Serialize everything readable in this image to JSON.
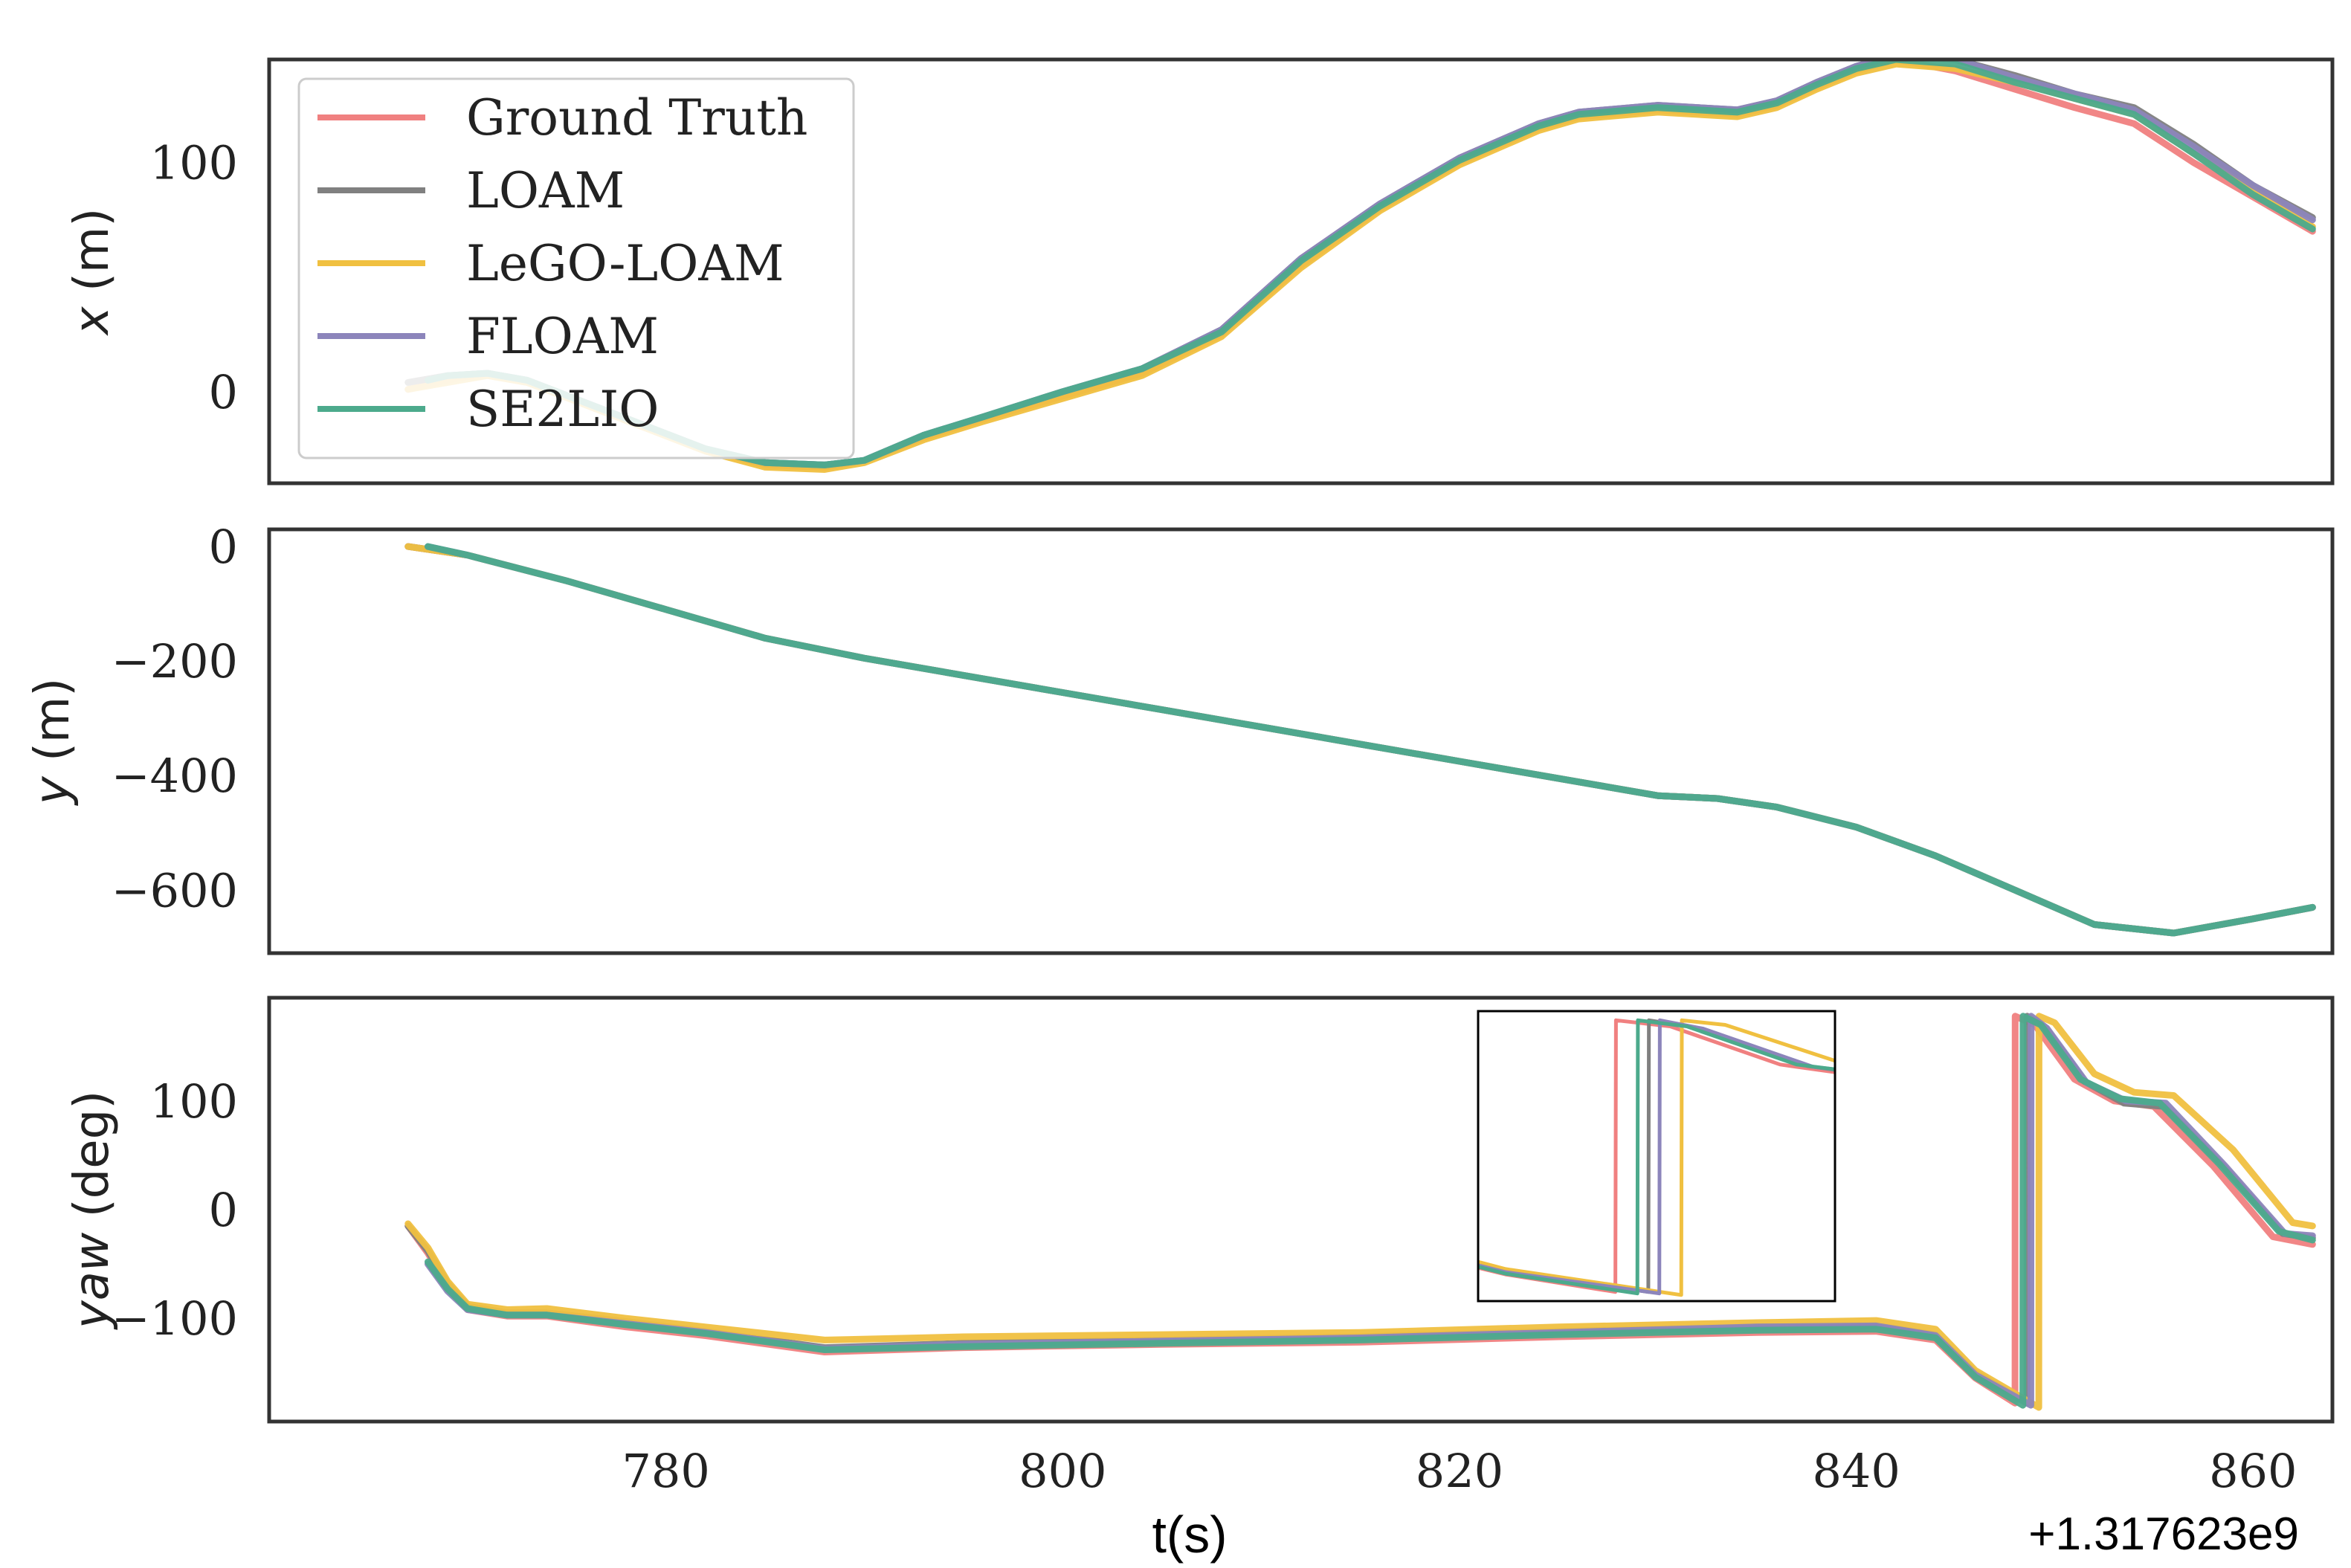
{
  "chart_data": [
    {
      "panel": "x",
      "type": "line",
      "ylabel_var": "x",
      "ylabel_unit": "(m)",
      "ylim": [
        -40,
        145
      ],
      "yticks": [
        0,
        100
      ],
      "xlim": [
        760,
        864
      ],
      "grid": false,
      "legend_placement": "top-left",
      "series": [
        {
          "name": "Ground Truth",
          "x": [
            767,
            769,
            771,
            773,
            776,
            779,
            782,
            785,
            788,
            790,
            793,
            796,
            800,
            804,
            808,
            812,
            816,
            820,
            824,
            826,
            830,
            834,
            836,
            838,
            840,
            842,
            845,
            848,
            851,
            854,
            857,
            860,
            863
          ],
          "y": [
            1,
            5,
            8,
            5,
            -5,
            -15,
            -25,
            -32,
            -33,
            -30,
            -20,
            -12,
            -2,
            8,
            25,
            55,
            80,
            100,
            115,
            120,
            123,
            121,
            125,
            133,
            140,
            145,
            140,
            132,
            124,
            117,
            100,
            85,
            70
          ]
        },
        {
          "name": "LOAM",
          "x": [
            767,
            769,
            771,
            773,
            776,
            779,
            782,
            785,
            788,
            790,
            793,
            796,
            800,
            804,
            808,
            812,
            816,
            820,
            824,
            826,
            830,
            834,
            836,
            838,
            840,
            842,
            845,
            848,
            851,
            854,
            857,
            860,
            863
          ],
          "y": [
            4,
            7,
            8,
            5,
            -5,
            -15,
            -25,
            -31,
            -32,
            -30,
            -19,
            -11,
            0,
            10,
            27,
            58,
            82,
            102,
            117,
            122,
            125,
            123,
            127,
            135,
            142,
            147,
            145,
            138,
            130,
            124,
            108,
            90,
            76
          ]
        },
        {
          "name": "LeGO-LOAM",
          "x": [
            767,
            769,
            771,
            773,
            776,
            779,
            782,
            785,
            788,
            790,
            793,
            796,
            800,
            804,
            808,
            812,
            816,
            820,
            824,
            826,
            830,
            834,
            836,
            838,
            840,
            842,
            845,
            848,
            851,
            854,
            857,
            860,
            863
          ],
          "y": [
            1,
            4,
            7,
            4,
            -6,
            -16,
            -26,
            -33,
            -34,
            -31,
            -21,
            -13,
            -3,
            7,
            24,
            54,
            79,
            99,
            114,
            119,
            122,
            120,
            124,
            132,
            139,
            143,
            141,
            135,
            128,
            121,
            104,
            88,
            72
          ]
        },
        {
          "name": "FLOAM",
          "x": [
            768,
            769,
            771,
            773,
            776,
            779,
            782,
            785,
            788,
            790,
            793,
            796,
            800,
            804,
            808,
            812,
            816,
            820,
            824,
            826,
            830,
            834,
            836,
            838,
            840,
            842,
            845,
            848,
            851,
            854,
            857,
            860,
            863
          ],
          "y": [
            5,
            7,
            8,
            5,
            -5,
            -15,
            -25,
            -31,
            -32,
            -30,
            -19,
            -11,
            0,
            10,
            27,
            58,
            82,
            102,
            117,
            122,
            125,
            123,
            127,
            135,
            142,
            147,
            145,
            137,
            130,
            123,
            107,
            90,
            75
          ]
        },
        {
          "name": "SE2LIO",
          "x": [
            768,
            769,
            771,
            773,
            776,
            779,
            782,
            785,
            788,
            790,
            793,
            796,
            800,
            804,
            808,
            812,
            816,
            820,
            824,
            826,
            830,
            834,
            836,
            838,
            840,
            842,
            845,
            848,
            851,
            854,
            857,
            860,
            863
          ],
          "y": [
            5,
            7,
            8,
            5,
            -5,
            -15,
            -25,
            -31,
            -32,
            -30,
            -19,
            -11,
            0,
            10,
            26,
            57,
            81,
            101,
            116,
            121,
            124,
            122,
            126,
            134,
            141,
            145,
            143,
            135,
            128,
            121,
            104,
            86,
            71
          ]
        }
      ]
    },
    {
      "panel": "y",
      "type": "line",
      "ylabel_var": "y",
      "ylabel_unit": "(m)",
      "ylim": [
        -710,
        30
      ],
      "yticks": [
        0,
        -200,
        -400,
        -600
      ],
      "yticklabels": [
        "0",
        "−200",
        "−400",
        "−600"
      ],
      "xlim": [
        760,
        864
      ],
      "grid": false,
      "series": [
        {
          "name": "Ground Truth",
          "x": [
            767,
            770,
            775,
            780,
            785,
            790,
            795,
            800,
            805,
            810,
            815,
            820,
            825,
            830,
            833,
            836,
            840,
            844,
            848,
            852,
            856,
            860,
            863
          ],
          "y": [
            0,
            -15,
            -60,
            -110,
            -160,
            -195,
            -225,
            -255,
            -285,
            -315,
            -345,
            -375,
            -405,
            -435,
            -440,
            -455,
            -490,
            -540,
            -600,
            -660,
            -675,
            -650,
            -630
          ]
        },
        {
          "name": "LOAM",
          "x": [
            767,
            770,
            775,
            780,
            785,
            790,
            795,
            800,
            805,
            810,
            815,
            820,
            825,
            830,
            833,
            836,
            840,
            844,
            848,
            852,
            856,
            860,
            863
          ],
          "y": [
            0,
            -15,
            -60,
            -110,
            -160,
            -195,
            -225,
            -255,
            -285,
            -315,
            -345,
            -375,
            -405,
            -435,
            -440,
            -455,
            -490,
            -540,
            -600,
            -660,
            -675,
            -650,
            -630
          ]
        },
        {
          "name": "LeGO-LOAM",
          "x": [
            767,
            770,
            775,
            780,
            785,
            790,
            795,
            800,
            805,
            810,
            815,
            820,
            825,
            830,
            833,
            836,
            840,
            844,
            848,
            852,
            856,
            860,
            863
          ],
          "y": [
            0,
            -15,
            -60,
            -110,
            -160,
            -195,
            -225,
            -255,
            -285,
            -315,
            -345,
            -375,
            -405,
            -435,
            -440,
            -455,
            -490,
            -540,
            -600,
            -660,
            -675,
            -650,
            -630
          ]
        },
        {
          "name": "FLOAM",
          "x": [
            768,
            770,
            775,
            780,
            785,
            790,
            795,
            800,
            805,
            810,
            815,
            820,
            825,
            830,
            833,
            836,
            840,
            844,
            848,
            852,
            856,
            860,
            863
          ],
          "y": [
            0,
            -15,
            -60,
            -110,
            -160,
            -195,
            -225,
            -255,
            -285,
            -315,
            -345,
            -375,
            -405,
            -435,
            -440,
            -455,
            -490,
            -540,
            -600,
            -660,
            -675,
            -650,
            -630
          ]
        },
        {
          "name": "SE2LIO",
          "x": [
            768,
            770,
            775,
            780,
            785,
            790,
            795,
            800,
            805,
            810,
            815,
            820,
            825,
            830,
            833,
            836,
            840,
            844,
            848,
            852,
            856,
            860,
            863
          ],
          "y": [
            0,
            -15,
            -60,
            -110,
            -160,
            -195,
            -225,
            -255,
            -285,
            -315,
            -345,
            -375,
            -405,
            -435,
            -440,
            -455,
            -490,
            -540,
            -600,
            -660,
            -675,
            -650,
            -630
          ]
        }
      ]
    },
    {
      "panel": "yaw",
      "type": "line",
      "ylabel_var": "yaw",
      "ylabel_unit": "(deg)",
      "ylim": [
        -195,
        195
      ],
      "yticks": [
        100,
        0,
        -100
      ],
      "yticklabels": [
        "100",
        "0",
        "−100"
      ],
      "xlim": [
        760,
        864
      ],
      "xticks": [
        780,
        800,
        820,
        840,
        860
      ],
      "xlabel": "t(s)",
      "x_offset_text": "+1.317623e9",
      "grid": false,
      "inset": true,
      "series": [
        {
          "name": "Ground Truth",
          "x": [
            767,
            768,
            769,
            770,
            772,
            774,
            778,
            782,
            788,
            795,
            805,
            815,
            825,
            835,
            841,
            844,
            846,
            848,
            848.01,
            849,
            851,
            853,
            855,
            858,
            861,
            863
          ],
          "y": [
            -15,
            -40,
            -70,
            -92,
            -98,
            -98,
            -108,
            -116,
            -131,
            -127,
            -124,
            -122,
            -117,
            -113,
            -112,
            -120,
            -155,
            -178,
            178,
            170,
            120,
            100,
            95,
            40,
            -25,
            -32
          ]
        },
        {
          "name": "LOAM",
          "x": [
            767,
            768,
            769,
            770,
            772,
            774,
            778,
            782,
            788,
            795,
            805,
            815,
            825,
            835,
            841,
            844,
            846,
            848.6,
            848.61,
            849.5,
            851.5,
            853.5,
            855.5,
            858.5,
            861.5,
            863
          ],
          "y": [
            -15,
            -38,
            -68,
            -89,
            -95,
            -95,
            -103,
            -112,
            -127,
            -123,
            -120,
            -117,
            -112,
            -108,
            -107,
            -115,
            -150,
            -178,
            178,
            168,
            118,
            98,
            95,
            40,
            -22,
            -26
          ]
        },
        {
          "name": "LeGO-LOAM",
          "x": [
            767,
            768,
            769,
            770,
            772,
            774,
            778,
            782,
            788,
            795,
            805,
            815,
            825,
            835,
            841,
            844,
            846,
            849.2,
            849.21,
            850,
            852,
            854,
            856,
            859,
            862,
            863
          ],
          "y": [
            -13,
            -35,
            -66,
            -87,
            -92,
            -91,
            -100,
            -108,
            -120,
            -117,
            -115,
            -113,
            -108,
            -104,
            -102,
            -110,
            -148,
            -182,
            178,
            172,
            125,
            108,
            105,
            55,
            -12,
            -15
          ]
        },
        {
          "name": "FLOAM",
          "x": [
            768,
            769,
            770,
            772,
            774,
            778,
            782,
            788,
            795,
            805,
            815,
            825,
            835,
            841,
            844,
            846,
            848.8,
            848.81,
            849.6,
            851.6,
            853.6,
            855.6,
            858.6,
            861.6,
            863
          ],
          "y": [
            -50,
            -75,
            -92,
            -97,
            -97,
            -105,
            -113,
            -128,
            -124,
            -121,
            -118,
            -113,
            -108,
            -107,
            -116,
            -152,
            -180,
            178,
            167,
            117,
            100,
            98,
            40,
            -22,
            -24
          ]
        },
        {
          "name": "SE2LIO",
          "x": [
            768,
            769,
            770,
            772,
            774,
            778,
            782,
            788,
            795,
            805,
            815,
            825,
            835,
            841,
            844,
            846,
            848.4,
            848.41,
            849.3,
            851.3,
            853.3,
            855.3,
            858.3,
            861.3,
            863
          ],
          "y": [
            -48,
            -73,
            -91,
            -97,
            -97,
            -106,
            -114,
            -129,
            -126,
            -123,
            -120,
            -115,
            -111,
            -110,
            -118,
            -154,
            -180,
            178,
            170,
            120,
            102,
            98,
            42,
            -20,
            -28
          ]
        }
      ]
    }
  ],
  "colors": {
    "Ground Truth": "#f08080",
    "LOAM": "#808080",
    "LeGO-LOAM": "#f0c040",
    "FLOAM": "#8c85bb",
    "SE2LIO": "#4caa8c",
    "frame": "#333333"
  }
}
